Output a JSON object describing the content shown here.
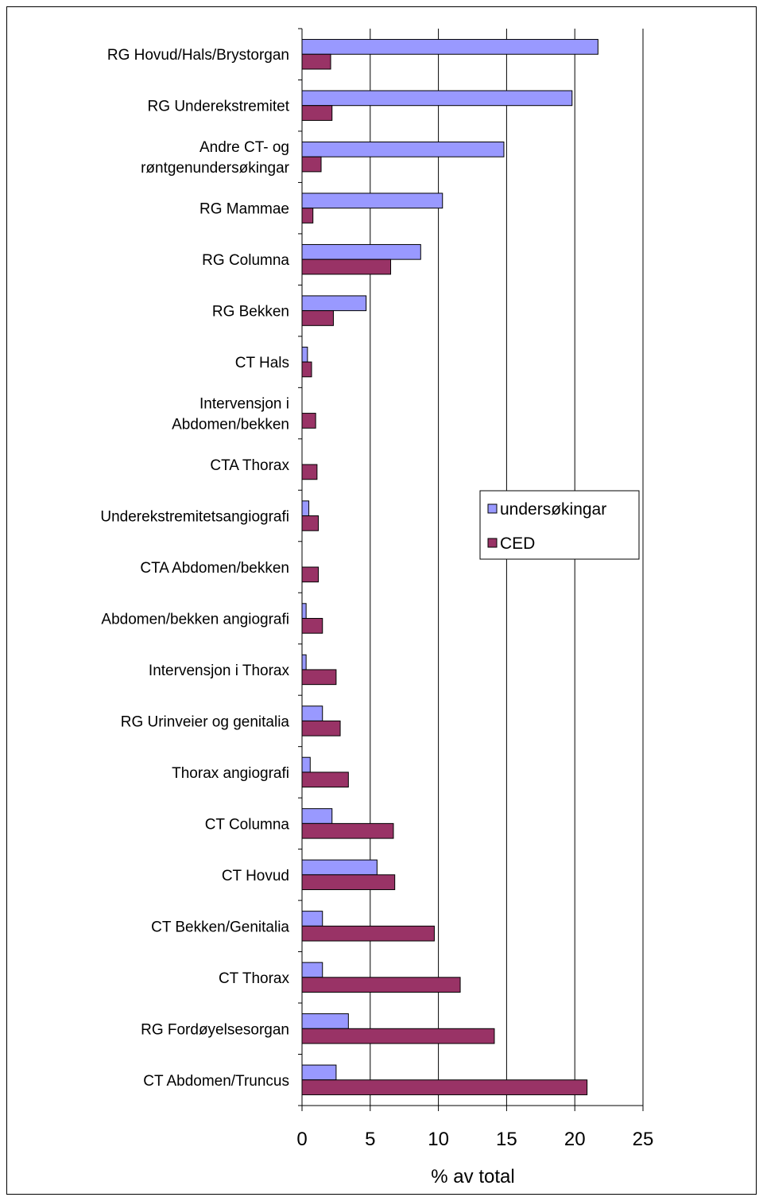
{
  "chart_data": {
    "type": "bar",
    "orientation": "horizontal",
    "categories": [
      "RG Hovud/Hals/Brystorgan",
      "RG Underekstremitet",
      "Andre CT- og røntgenundersøkingar",
      "RG Mammae",
      "RG Columna",
      "RG Bekken",
      "CT Hals",
      "Intervensjon i Abdomen/bekken",
      "CTA Thorax",
      "Underekstremitetsangiografi",
      "CTA Abdomen/bekken",
      "Abdomen/bekken angiografi",
      "Intervensjon i Thorax",
      "RG Urinveier og genitalia",
      "Thorax angiografi",
      "CT Columna",
      "CT Hovud",
      "CT Bekken/Genitalia",
      "CT Thorax",
      "RG Fordøyelsesorgan",
      "CT Abdomen/Truncus"
    ],
    "category_lines": [
      [
        "RG Hovud/Hals/Brystorgan"
      ],
      [
        "RG Underekstremitet"
      ],
      [
        "Andre CT- og",
        "røntgenundersøkingar"
      ],
      [
        "RG Mammae"
      ],
      [
        "RG Columna"
      ],
      [
        "RG Bekken"
      ],
      [
        "CT Hals"
      ],
      [
        "Intervensjon i",
        "Abdomen/bekken"
      ],
      [
        "CTA Thorax"
      ],
      [
        "Underekstremitetsangiografi"
      ],
      [
        "CTA Abdomen/bekken"
      ],
      [
        "Abdomen/bekken angiografi"
      ],
      [
        "Intervensjon i Thorax"
      ],
      [
        "RG Urinveier og genitalia"
      ],
      [
        "Thorax angiografi"
      ],
      [
        "CT Columna"
      ],
      [
        "CT Hovud"
      ],
      [
        "CT Bekken/Genitalia"
      ],
      [
        "CT Thorax"
      ],
      [
        "RG Fordøyelsesorgan"
      ],
      [
        "CT Abdomen/Truncus"
      ]
    ],
    "series": [
      {
        "name": "undersøkingar",
        "color": "#9999ff",
        "values": [
          21.7,
          19.8,
          14.8,
          10.3,
          8.7,
          4.7,
          0.4,
          0.0,
          0.0,
          0.5,
          0.0,
          0.3,
          0.3,
          1.5,
          0.6,
          2.2,
          5.5,
          1.5,
          1.5,
          3.4,
          2.5
        ]
      },
      {
        "name": "CED",
        "color": "#993366",
        "values": [
          2.1,
          2.2,
          1.4,
          0.8,
          6.5,
          2.3,
          0.7,
          1.0,
          1.1,
          1.2,
          1.2,
          1.5,
          2.5,
          2.8,
          3.4,
          6.7,
          6.8,
          9.7,
          11.6,
          14.1,
          20.9
        ]
      }
    ],
    "xlabel": "% av total",
    "xlim": [
      0,
      25
    ],
    "xticks": [
      "0",
      "5",
      "10",
      "15",
      "20",
      "25"
    ],
    "grid": true,
    "legend_position": "right"
  }
}
